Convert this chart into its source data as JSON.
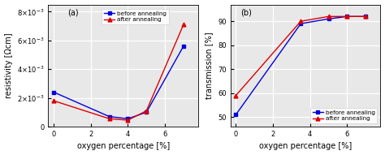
{
  "panel_a": {
    "label": "(a)",
    "xlabel": "oxygen percentage [%]",
    "ylabel": "resistivity [Ωcm]",
    "xlim": [
      -0.3,
      7.8
    ],
    "ylim": [
      0,
      0.0085
    ],
    "yticks": [
      0,
      0.002,
      0.004,
      0.006,
      0.008
    ],
    "xticks": [
      0,
      2,
      4,
      6
    ],
    "before": {
      "x": [
        0,
        3,
        4,
        5,
        7
      ],
      "y": [
        0.0024,
        0.0007,
        0.00055,
        0.001,
        0.0056
      ],
      "color": "#0000dd",
      "marker": "s",
      "label": "before annealing"
    },
    "after": {
      "x": [
        0,
        3,
        4,
        5,
        7
      ],
      "y": [
        0.0018,
        0.00055,
        0.00045,
        0.0011,
        0.0071
      ],
      "color": "#dd0000",
      "marker": "^",
      "label": "after annealing"
    }
  },
  "panel_b": {
    "label": "(b)",
    "xlabel": "oxygen percentage [%]",
    "ylabel": "transmission [%]",
    "xlim": [
      -0.3,
      7.8
    ],
    "ylim": [
      46,
      97
    ],
    "yticks": [
      50,
      60,
      70,
      80,
      90
    ],
    "xticks": [
      0,
      2,
      4,
      6
    ],
    "before": {
      "x": [
        0,
        3.5,
        5,
        6,
        7
      ],
      "y": [
        51,
        89,
        91,
        92,
        92
      ],
      "color": "#0000dd",
      "marker": "s",
      "label": "before annealing"
    },
    "after": {
      "x": [
        0,
        3.5,
        5,
        6,
        7
      ],
      "y": [
        59,
        90,
        92,
        92,
        92
      ],
      "color": "#dd0000",
      "marker": "^",
      "label": "after annealing"
    }
  },
  "background_color": "#e8e8e8",
  "grid_color": "#ffffff",
  "font_size": 7,
  "tick_font_size": 6,
  "label_fontsize": 7.5
}
